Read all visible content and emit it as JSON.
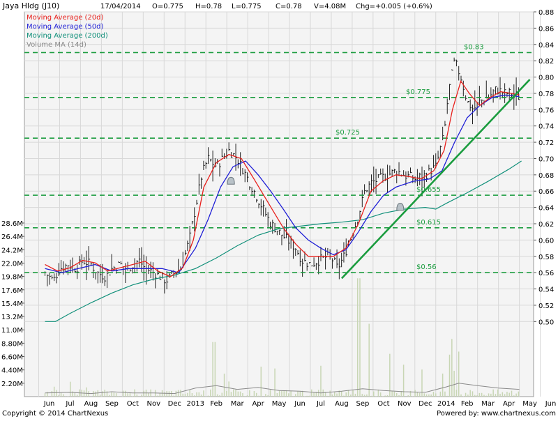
{
  "header": {
    "title": "Jaya Hldg (J10)",
    "date": "17/04/2014",
    "open": "O=0.775",
    "high": "H=0.78",
    "low": "L=0.775",
    "close": "C=0.78",
    "volume": "V=4.08M",
    "change": "Chg=+0.005 (+0.6%)"
  },
  "legend": [
    {
      "label": "Moving Average (20d)",
      "color": "#e8201c"
    },
    {
      "label": "Moving Average (50d)",
      "color": "#1f1fd6"
    },
    {
      "label": "Moving Average (200d)",
      "color": "#11907a"
    },
    {
      "label": "Volume MA (14d)",
      "color": "#8a8a8a"
    }
  ],
  "footer": {
    "copyright": "Copyright © 2014 ChartNexus",
    "powered": "Powered by: www.chartnexus.com"
  },
  "colors": {
    "price_bar": "#222222",
    "ma20": "#e8201c",
    "ma50": "#1f1fd6",
    "ma200": "#11907a",
    "support_line": "#1a9c3e",
    "trend_line": "#1a9c3e",
    "volume_bar": "#c8d6b4",
    "volume_ma": "#8a8a8a",
    "grid": "#d8d8d8",
    "plot_bg": "#f4f4f4"
  },
  "chart_data": {
    "type": "ohlc",
    "x_labels": [
      "Jun",
      "Jul",
      "Aug",
      "Sep",
      "Oct",
      "Nov",
      "Dec",
      "2013",
      "Feb",
      "Mar",
      "Apr",
      "May",
      "Jun",
      "Jul",
      "Aug",
      "Sep",
      "Oct",
      "Nov",
      "Dec",
      "2014",
      "Feb",
      "Mar",
      "Apr",
      "May",
      "Jun"
    ],
    "x_range": [
      0,
      24.5
    ],
    "price_ticks": [
      "0.88",
      "0.86",
      "0.84",
      "0.82",
      "0.80",
      "0.78",
      "0.76",
      "0.74",
      "0.72",
      "0.70",
      "0.68",
      "0.66",
      "0.64",
      "0.62",
      "0.60",
      "0.58",
      "0.56",
      "0.54",
      "0.52",
      "0.50"
    ],
    "price_range": [
      0.49,
      0.88
    ],
    "volume_ticks": [
      "28.6M",
      "26.4M",
      "24.2M",
      "22.0M",
      "19.8M",
      "17.6M",
      "15.4M",
      "13.2M",
      "11.0M",
      "8.80M",
      "6.60M",
      "4.40M",
      "2.20M"
    ],
    "support_levels": [
      {
        "label": "$0.83",
        "price": 0.83
      },
      {
        "label": "$0.775",
        "price": 0.775
      },
      {
        "label": "$0.725",
        "price": 0.725
      },
      {
        "label": "$0.655",
        "price": 0.655
      },
      {
        "label": "$0.615",
        "price": 0.615
      },
      {
        "label": "$0.56",
        "price": 0.56
      }
    ],
    "trend_line": {
      "from": [
        14.0,
        0.553
      ],
      "to": [
        23.0,
        0.797
      ]
    },
    "close_path": [
      [
        -0.2,
        0.56
      ],
      [
        0.2,
        0.55
      ],
      [
        0.5,
        0.565
      ],
      [
        0.9,
        0.57
      ],
      [
        1.3,
        0.565
      ],
      [
        1.6,
        0.575
      ],
      [
        2.0,
        0.57
      ],
      [
        2.3,
        0.56
      ],
      [
        2.7,
        0.555
      ],
      [
        3.0,
        0.565
      ],
      [
        3.4,
        0.57
      ],
      [
        3.7,
        0.565
      ],
      [
        4.0,
        0.57
      ],
      [
        4.3,
        0.575
      ],
      [
        4.6,
        0.565
      ],
      [
        5.0,
        0.56
      ],
      [
        5.3,
        0.555
      ],
      [
        5.6,
        0.55
      ],
      [
        6.0,
        0.56
      ],
      [
        6.3,
        0.565
      ],
      [
        6.7,
        0.6
      ],
      [
        7.0,
        0.64
      ],
      [
        7.3,
        0.68
      ],
      [
        7.6,
        0.7
      ],
      [
        8.0,
        0.69
      ],
      [
        8.3,
        0.7
      ],
      [
        8.6,
        0.71
      ],
      [
        9.0,
        0.7
      ],
      [
        9.4,
        0.68
      ],
      [
        9.8,
        0.66
      ],
      [
        10.2,
        0.64
      ],
      [
        10.6,
        0.62
      ],
      [
        11.0,
        0.61
      ],
      [
        11.4,
        0.6
      ],
      [
        11.8,
        0.59
      ],
      [
        12.1,
        0.575
      ],
      [
        12.5,
        0.57
      ],
      [
        12.9,
        0.575
      ],
      [
        13.3,
        0.58
      ],
      [
        13.6,
        0.575
      ],
      [
        13.8,
        0.565
      ],
      [
        14.1,
        0.58
      ],
      [
        14.4,
        0.6
      ],
      [
        14.8,
        0.63
      ],
      [
        15.1,
        0.66
      ],
      [
        15.4,
        0.67
      ],
      [
        15.8,
        0.675
      ],
      [
        16.2,
        0.68
      ],
      [
        16.6,
        0.685
      ],
      [
        17.0,
        0.68
      ],
      [
        17.5,
        0.675
      ],
      [
        18.0,
        0.68
      ],
      [
        18.5,
        0.69
      ],
      [
        18.9,
        0.73
      ],
      [
        19.1,
        0.78
      ],
      [
        19.4,
        0.82
      ],
      [
        19.7,
        0.8
      ],
      [
        20.0,
        0.77
      ],
      [
        20.3,
        0.76
      ],
      [
        20.6,
        0.77
      ],
      [
        21.0,
        0.775
      ],
      [
        21.4,
        0.785
      ],
      [
        21.8,
        0.78
      ],
      [
        22.2,
        0.78
      ],
      [
        22.5,
        0.775
      ]
    ],
    "ma20": [
      [
        -0.2,
        0.57
      ],
      [
        0.4,
        0.562
      ],
      [
        1.0,
        0.566
      ],
      [
        1.6,
        0.575
      ],
      [
        2.2,
        0.572
      ],
      [
        2.8,
        0.562
      ],
      [
        3.4,
        0.566
      ],
      [
        4.0,
        0.57
      ],
      [
        4.6,
        0.574
      ],
      [
        5.2,
        0.562
      ],
      [
        5.8,
        0.555
      ],
      [
        6.4,
        0.566
      ],
      [
        6.9,
        0.6
      ],
      [
        7.4,
        0.665
      ],
      [
        8.0,
        0.695
      ],
      [
        8.6,
        0.705
      ],
      [
        9.2,
        0.7
      ],
      [
        9.8,
        0.675
      ],
      [
        10.5,
        0.645
      ],
      [
        11.2,
        0.615
      ],
      [
        11.8,
        0.595
      ],
      [
        12.4,
        0.58
      ],
      [
        13.0,
        0.58
      ],
      [
        13.6,
        0.58
      ],
      [
        14.2,
        0.59
      ],
      [
        14.8,
        0.62
      ],
      [
        15.4,
        0.66
      ],
      [
        16.0,
        0.673
      ],
      [
        16.6,
        0.68
      ],
      [
        17.2,
        0.678
      ],
      [
        17.8,
        0.675
      ],
      [
        18.4,
        0.685
      ],
      [
        18.9,
        0.71
      ],
      [
        19.3,
        0.76
      ],
      [
        19.7,
        0.795
      ],
      [
        20.1,
        0.78
      ],
      [
        20.6,
        0.765
      ],
      [
        21.1,
        0.775
      ],
      [
        21.6,
        0.782
      ],
      [
        22.1,
        0.78
      ],
      [
        22.5,
        0.778
      ]
    ],
    "ma50": [
      [
        -0.2,
        0.565
      ],
      [
        0.6,
        0.56
      ],
      [
        1.4,
        0.565
      ],
      [
        2.2,
        0.57
      ],
      [
        3.0,
        0.562
      ],
      [
        3.8,
        0.565
      ],
      [
        4.6,
        0.565
      ],
      [
        5.4,
        0.565
      ],
      [
        6.2,
        0.56
      ],
      [
        7.0,
        0.59
      ],
      [
        7.6,
        0.625
      ],
      [
        8.2,
        0.665
      ],
      [
        8.8,
        0.69
      ],
      [
        9.4,
        0.697
      ],
      [
        10.0,
        0.68
      ],
      [
        10.6,
        0.66
      ],
      [
        11.2,
        0.638
      ],
      [
        11.8,
        0.615
      ],
      [
        12.4,
        0.6
      ],
      [
        13.0,
        0.59
      ],
      [
        13.6,
        0.582
      ],
      [
        14.2,
        0.588
      ],
      [
        14.8,
        0.61
      ],
      [
        15.4,
        0.635
      ],
      [
        16.0,
        0.655
      ],
      [
        16.6,
        0.665
      ],
      [
        17.4,
        0.672
      ],
      [
        18.2,
        0.675
      ],
      [
        18.8,
        0.685
      ],
      [
        19.4,
        0.72
      ],
      [
        20.0,
        0.75
      ],
      [
        20.6,
        0.765
      ],
      [
        21.2,
        0.775
      ],
      [
        21.8,
        0.778
      ],
      [
        22.5,
        0.776
      ]
    ],
    "ma200": [
      [
        -0.2,
        0.5
      ],
      [
        0.3,
        0.5
      ],
      [
        1.0,
        0.51
      ],
      [
        2.0,
        0.523
      ],
      [
        3.0,
        0.535
      ],
      [
        4.0,
        0.545
      ],
      [
        5.0,
        0.552
      ],
      [
        6.0,
        0.557
      ],
      [
        7.0,
        0.565
      ],
      [
        8.0,
        0.578
      ],
      [
        9.0,
        0.593
      ],
      [
        10.0,
        0.606
      ],
      [
        11.0,
        0.614
      ],
      [
        12.0,
        0.617
      ],
      [
        13.0,
        0.62
      ],
      [
        14.0,
        0.622
      ],
      [
        15.0,
        0.625
      ],
      [
        16.0,
        0.633
      ],
      [
        17.0,
        0.638
      ],
      [
        18.0,
        0.64
      ],
      [
        18.5,
        0.638
      ],
      [
        19.0,
        0.645
      ],
      [
        20.0,
        0.658
      ],
      [
        21.0,
        0.672
      ],
      [
        22.0,
        0.687
      ],
      [
        22.6,
        0.697
      ]
    ],
    "volume_ma_path": [
      [
        -0.2,
        0.6
      ],
      [
        1,
        0.7
      ],
      [
        2,
        0.5
      ],
      [
        3,
        0.8
      ],
      [
        4,
        0.6
      ],
      [
        5,
        0.6
      ],
      [
        6,
        0.5
      ],
      [
        7,
        1.4
      ],
      [
        8,
        1.8
      ],
      [
        9,
        1.2
      ],
      [
        10,
        1.5
      ],
      [
        11,
        1.0
      ],
      [
        12,
        0.9
      ],
      [
        13,
        0.6
      ],
      [
        14,
        0.9
      ],
      [
        15,
        1.3
      ],
      [
        16,
        1.0
      ],
      [
        17,
        0.8
      ],
      [
        18,
        0.7
      ],
      [
        19,
        1.6
      ],
      [
        19.6,
        2.2
      ],
      [
        20.5,
        1.8
      ],
      [
        21.5,
        1.4
      ],
      [
        22.5,
        1.2
      ]
    ],
    "alert_markers": [
      {
        "x": 8.7,
        "y": 0.672
      },
      {
        "x": 16.8,
        "y": 0.64
      }
    ]
  }
}
